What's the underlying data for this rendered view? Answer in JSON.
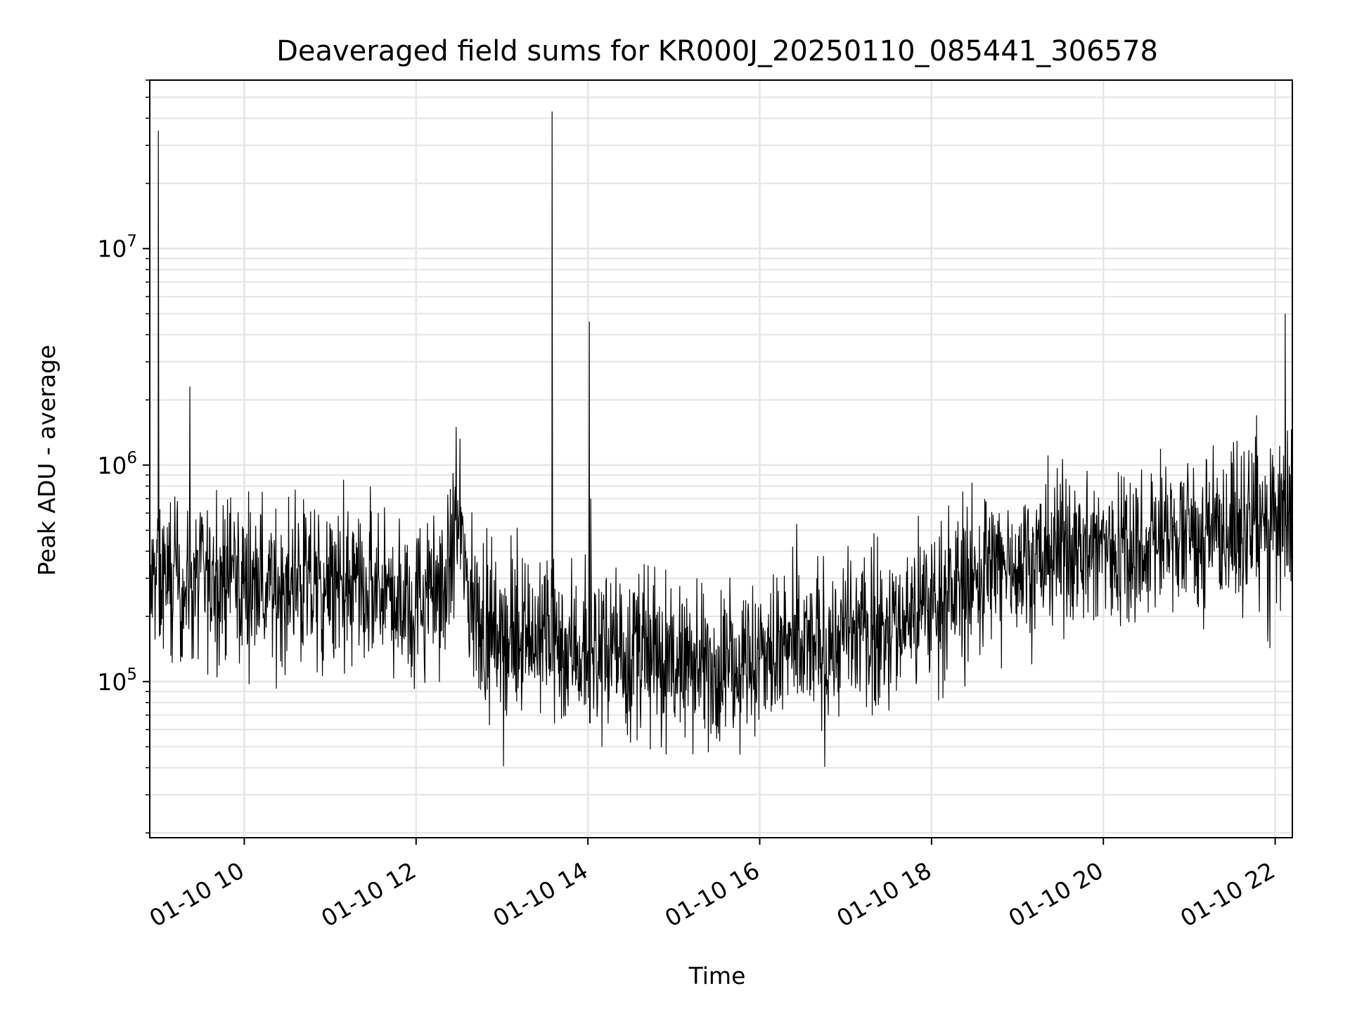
{
  "chart_data": {
    "type": "line",
    "title": "Deaveraged field sums for KR000J_20250110_085441_306578",
    "xlabel": "Time",
    "ylabel": "Peak ADU - average",
    "x_axis": {
      "kind": "time",
      "range": [
        "01-10 08:54",
        "01-10 22:12"
      ],
      "ticks": [
        "01-10 10",
        "01-10 12",
        "01-10 14",
        "01-10 16",
        "01-10 18",
        "01-10 20",
        "01-10 22"
      ]
    },
    "y_axis": {
      "scale": "log",
      "range": [
        19000,
        60000000
      ],
      "ticks": [
        {
          "value": 100000,
          "base": "10",
          "exp": "5"
        },
        {
          "value": 1000000,
          "base": "10",
          "exp": "6"
        },
        {
          "value": 10000000,
          "base": "10",
          "exp": "7"
        }
      ]
    },
    "grid": true,
    "line_color": "#000000",
    "grid_color": "#e6e6e6",
    "series": [
      {
        "x": [
          "01-10 08:54",
          "01-10 09:00",
          "01-10 09:20",
          "01-10 09:40",
          "01-10 10:00",
          "01-10 10:30",
          "01-10 11:00",
          "01-10 11:30",
          "01-10 12:00",
          "01-10 12:20",
          "01-10 12:30",
          "01-10 12:40",
          "01-10 13:00",
          "01-10 13:30",
          "01-10 14:00",
          "01-10 14:30",
          "01-10 15:00",
          "01-10 15:30",
          "01-10 16:00",
          "01-10 16:30",
          "01-10 17:00",
          "01-10 17:30",
          "01-10 18:00",
          "01-10 18:30",
          "01-10 19:00",
          "01-10 19:30",
          "01-10 20:00",
          "01-10 20:30",
          "01-10 21:00",
          "01-10 21:30",
          "01-10 22:00",
          "01-10 22:12"
        ],
        "y": [
          250000,
          300000,
          280000,
          300000,
          290000,
          270000,
          260000,
          250000,
          230000,
          300000,
          500000,
          200000,
          170000,
          160000,
          140000,
          130000,
          120000,
          120000,
          130000,
          140000,
          160000,
          180000,
          230000,
          300000,
          380000,
          400000,
          420000,
          450000,
          480000,
          500000,
          550000,
          560000
        ],
        "spikes": [
          {
            "x": "01-10 09:00",
            "y": 35000000
          },
          {
            "x": "01-10 09:22",
            "y": 2300000
          },
          {
            "x": "01-10 12:28",
            "y": 1500000
          },
          {
            "x": "01-10 13:35",
            "y": 43000000
          },
          {
            "x": "01-10 14:01",
            "y": 4600000
          },
          {
            "x": "01-10 14:02",
            "y": 700000
          },
          {
            "x": "01-10 21:47",
            "y": 1700000
          },
          {
            "x": "01-10 22:07",
            "y": 5000000
          }
        ]
      }
    ]
  }
}
